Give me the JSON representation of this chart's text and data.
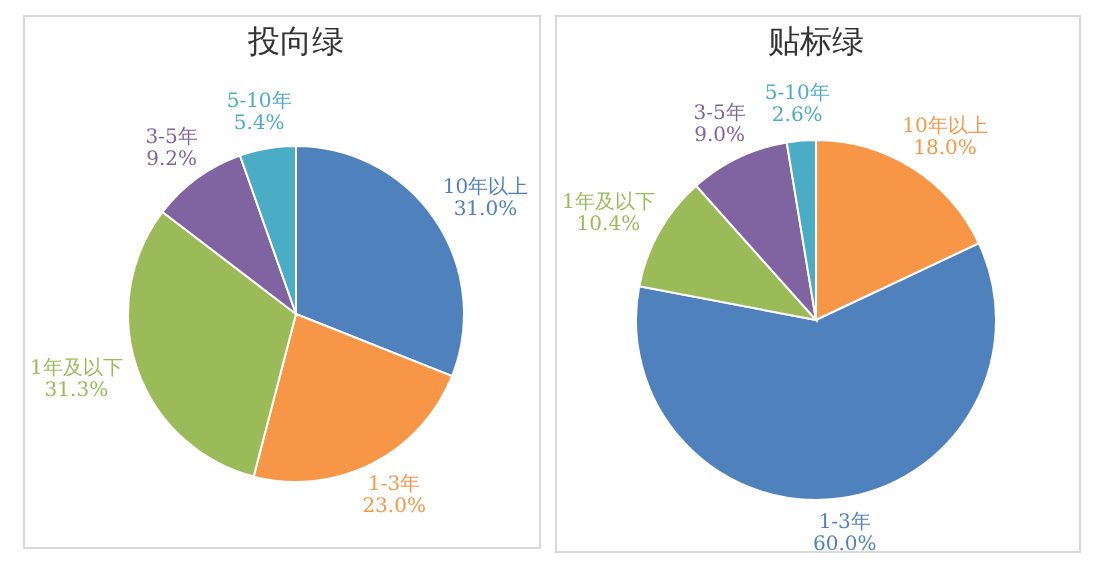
{
  "chart_data": [
    {
      "type": "pie",
      "title": "投向绿",
      "categories": [
        "10年以上",
        "1-3年",
        "1年及以下",
        "3-5年",
        "5-10年"
      ],
      "values": [
        31.0,
        23.0,
        31.3,
        9.2,
        5.4
      ],
      "value_labels": [
        "31.0%",
        "23.0%",
        "31.3%",
        "9.2%",
        "5.4%"
      ],
      "colors": [
        "#4f81bd",
        "#f79646",
        "#9bbb59",
        "#8064a2",
        "#4bacc6"
      ]
    },
    {
      "type": "pie",
      "title": "贴标绿",
      "categories": [
        "10年以上",
        "1-3年",
        "1年及以下",
        "3-5年",
        "5-10年"
      ],
      "values": [
        18.0,
        60.0,
        10.4,
        9.0,
        2.6
      ],
      "value_labels": [
        "18.0%",
        "60.0%",
        "10.4%",
        "9.0%",
        "2.6%"
      ],
      "colors": [
        "#f79646",
        "#4f81bd",
        "#9bbb59",
        "#8064a2",
        "#4bacc6"
      ]
    }
  ]
}
